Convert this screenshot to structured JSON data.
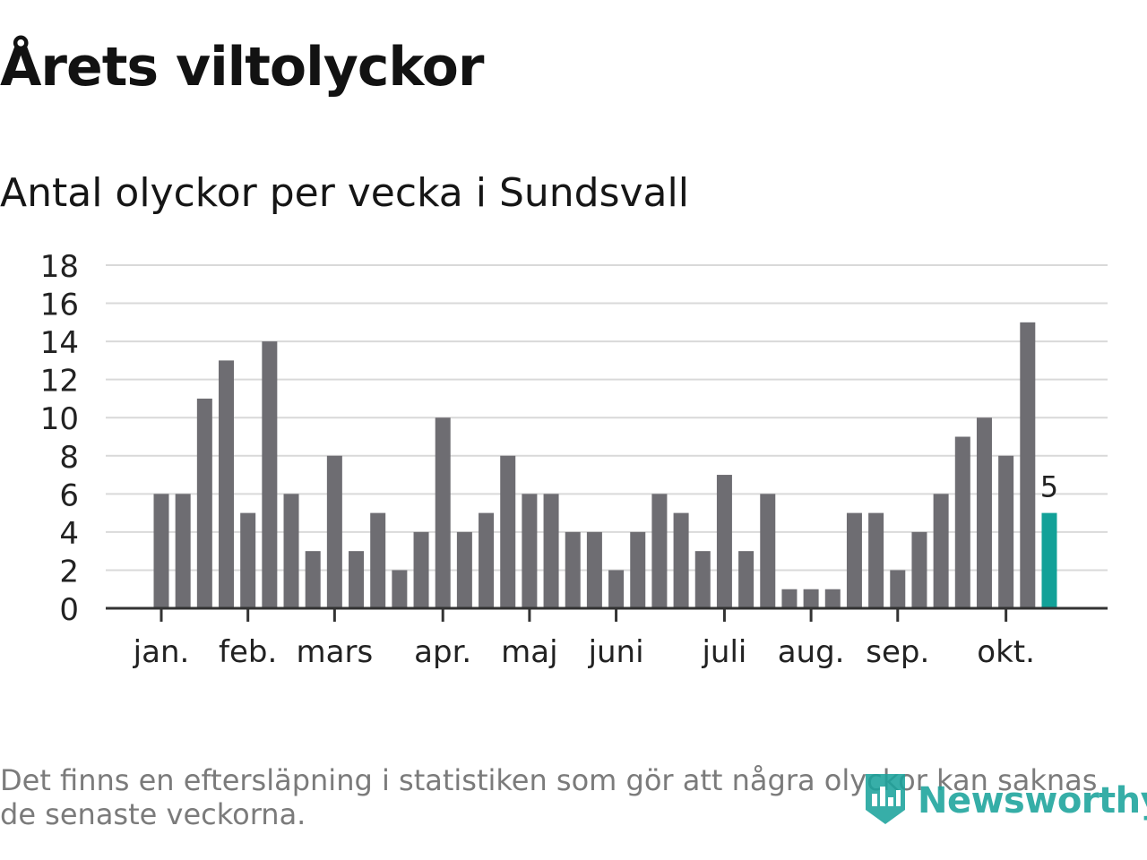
{
  "title": "Årets viltolyckor",
  "subtitle": "Antal olyckor per vecka i Sundsvall",
  "footnote": "Det finns en eftersläpning i statistiken som gör att några olyckor kan saknas de senaste veckorna.",
  "brand": {
    "name": "Newsworthy",
    "icon": "newsworthy-logo-icon"
  },
  "colors": {
    "bar": "#6e6d72",
    "highlight": "#12a198",
    "grid": "#d9d9d9",
    "axis": "#333333",
    "text": "#222222",
    "brand": "#1ba39c"
  },
  "chart_data": {
    "type": "bar",
    "title": "Antal olyckor per vecka i Sundsvall",
    "xlabel": "",
    "ylabel": "",
    "ylim": [
      0,
      18
    ],
    "yticks": [
      "0",
      "2",
      "4",
      "6",
      "8",
      "10",
      "12",
      "14",
      "16",
      "18"
    ],
    "grid": true,
    "values": [
      6,
      6,
      11,
      13,
      5,
      14,
      6,
      3,
      8,
      3,
      5,
      2,
      4,
      10,
      4,
      5,
      8,
      6,
      6,
      4,
      4,
      2,
      4,
      6,
      5,
      3,
      7,
      3,
      6,
      1,
      1,
      1,
      5,
      5,
      2,
      4,
      6,
      9,
      10,
      8,
      15,
      5
    ],
    "highlight_index": 41,
    "highlight_label": "5",
    "month_ticks": [
      {
        "label": "jan.",
        "position": 0
      },
      {
        "label": "feb.",
        "position": 4
      },
      {
        "label": "mars",
        "position": 8
      },
      {
        "label": "apr.",
        "position": 13
      },
      {
        "label": "maj",
        "position": 17
      },
      {
        "label": "juni",
        "position": 21
      },
      {
        "label": "juli",
        "position": 26
      },
      {
        "label": "aug.",
        "position": 30
      },
      {
        "label": "sep.",
        "position": 34
      },
      {
        "label": "okt.",
        "position": 39
      }
    ]
  }
}
